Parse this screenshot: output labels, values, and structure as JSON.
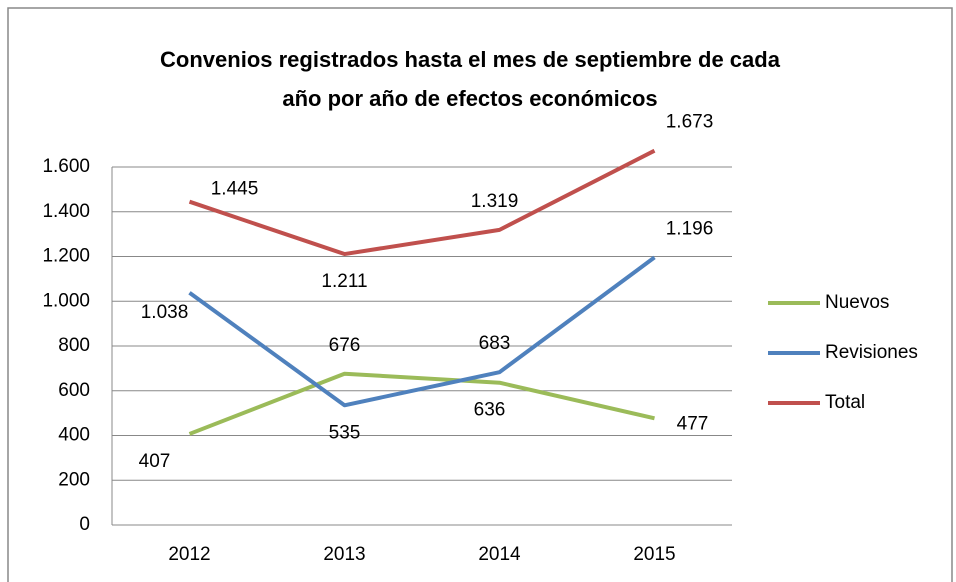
{
  "chart_data": {
    "type": "line",
    "title": "Convenios registrados hasta el mes de septiembre de cada año por año de efectos económicos",
    "categories": [
      "2012",
      "2013",
      "2014",
      "2015"
    ],
    "series": [
      {
        "name": "Nuevos",
        "color": "#9bbb59",
        "values": [
          407,
          676,
          636,
          477
        ]
      },
      {
        "name": "Revisiones",
        "color": "#4f81bd",
        "values": [
          1038,
          535,
          683,
          1196
        ],
        "value_labels": [
          "1.038",
          "535",
          "683",
          "1.196"
        ]
      },
      {
        "name": "Total",
        "color": "#c0504d",
        "values": [
          1445,
          1211,
          1319,
          1673
        ],
        "value_labels": [
          "1.445",
          "1.211",
          "1.319",
          "1.673"
        ]
      }
    ],
    "ylim": [
      0,
      1600
    ],
    "yticks": [
      0,
      200,
      400,
      600,
      800,
      {
        "value": 1000,
        "label": "1.000"
      },
      {
        "value": 1200,
        "label": "1.200"
      },
      {
        "value": 1400,
        "label": "1.400"
      },
      {
        "value": 1600,
        "label": "1.600"
      }
    ],
    "grid": true,
    "legend": "right"
  }
}
